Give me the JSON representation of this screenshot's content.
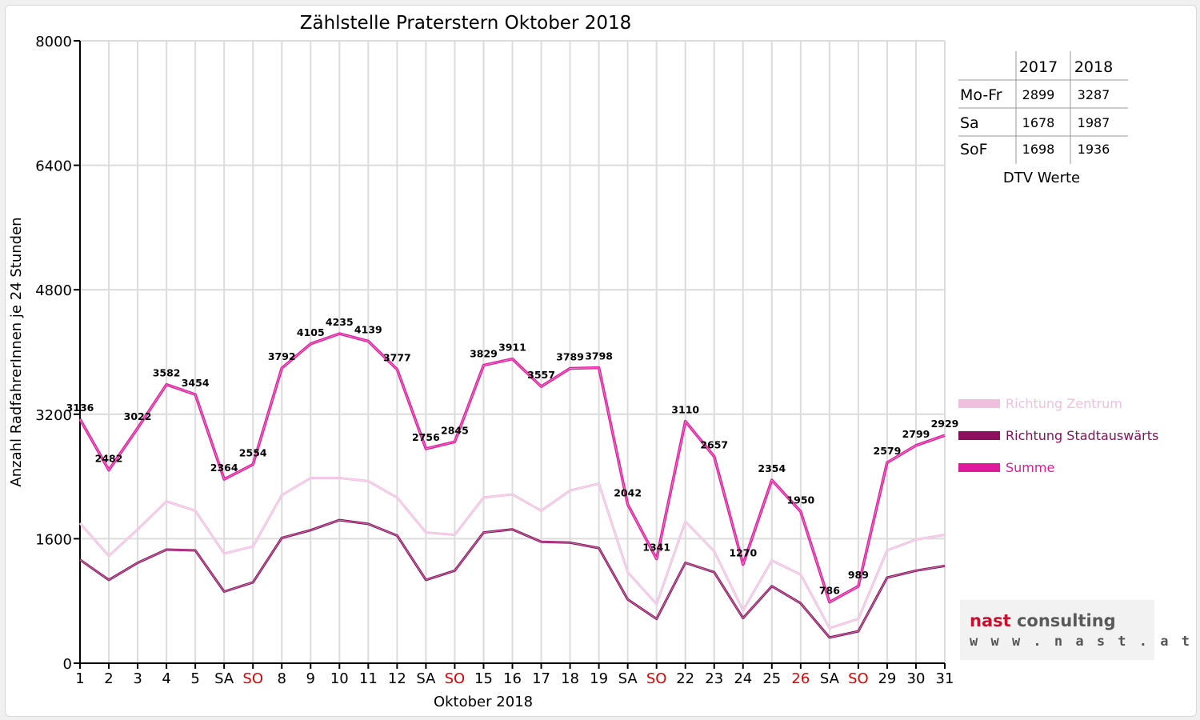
{
  "colors": {
    "zentrum": "#f0bfe0",
    "stadtauswaerts": "#8c0e5e",
    "summe": "#e0199c",
    "weekend_red": "#e00000",
    "logo_nast": "#c8102e",
    "logo_consulting": "#5a5a5a"
  },
  "chart_data": {
    "type": "line",
    "title": "Zählstelle Praterstern Oktober 2018",
    "xlabel": "Oktober 2018",
    "ylabel": "Anzahl RadfahrerInnen je 24 Stunden",
    "ylim": [
      0,
      8000
    ],
    "yticks": [
      "0",
      "1600",
      "3200",
      "4800",
      "6400",
      "8000"
    ],
    "grid": true,
    "legend_position": "right",
    "categories": [
      "1",
      "2",
      "3",
      "4",
      "5",
      "SA",
      "SO",
      "8",
      "9",
      "10",
      "11",
      "12",
      "SA",
      "SO",
      "15",
      "16",
      "17",
      "18",
      "19",
      "SA",
      "SO",
      "22",
      "23",
      "24",
      "25",
      "26",
      "SA",
      "SO",
      "29",
      "30",
      "31"
    ],
    "red_categories": [
      6,
      13,
      20,
      25,
      27
    ],
    "series": [
      {
        "name": "Richtung Zentrum",
        "color": "#f0bfe0",
        "values": [
          1800,
          1380,
          1720,
          2080,
          1960,
          1410,
          1500,
          2160,
          2380,
          2380,
          2340,
          2130,
          1680,
          1650,
          2130,
          2170,
          1960,
          2220,
          2310,
          1170,
          760,
          1820,
          1440,
          680,
          1320,
          1140,
          450,
          570,
          1450,
          1590,
          1650
        ]
      },
      {
        "name": "Richtung Stadtauswärts",
        "color": "#8c0e5e",
        "values": [
          1330,
          1070,
          1290,
          1460,
          1450,
          920,
          1040,
          1610,
          1710,
          1840,
          1790,
          1640,
          1070,
          1190,
          1680,
          1720,
          1560,
          1550,
          1480,
          820,
          570,
          1290,
          1170,
          580,
          990,
          770,
          330,
          410,
          1100,
          1190,
          1250
        ]
      },
      {
        "name": "Summe",
        "color": "#e0199c",
        "values": [
          3136,
          2482,
          3022,
          3582,
          3454,
          2364,
          2554,
          3792,
          4105,
          4235,
          4139,
          3777,
          2756,
          2845,
          3829,
          3911,
          3557,
          3789,
          3798,
          2042,
          1341,
          3110,
          2657,
          1270,
          2354,
          1950,
          786,
          989,
          2579,
          2799,
          2929
        ]
      }
    ]
  },
  "dtv_table": {
    "headers": [
      "",
      "2017",
      "2018"
    ],
    "rows": [
      {
        "label": "Mo-Fr",
        "v2017": "2899",
        "v2018": "3287"
      },
      {
        "label": "Sa",
        "v2017": "1678",
        "v2018": "1987"
      },
      {
        "label": "SoF",
        "v2017": "1698",
        "v2018": "1936"
      }
    ],
    "caption": "DTV Werte"
  },
  "logo": {
    "nast": "nast",
    "consulting": " consulting",
    "url": "w w w . n a s t . a t"
  }
}
